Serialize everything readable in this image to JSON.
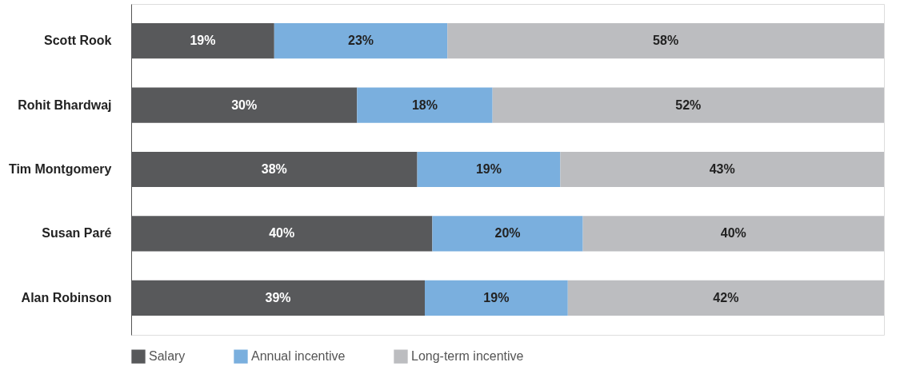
{
  "chart_data": {
    "type": "bar",
    "orientation": "horizontal",
    "stacked": true,
    "legend": "bottom",
    "categories": [
      "Scott Rook",
      "Rohit Bhardwaj",
      "Tim Montgomery",
      "Susan Paré",
      "Alan Robinson"
    ],
    "series": [
      {
        "name": "Salary",
        "color": "#58595b",
        "values": [
          19,
          30,
          38,
          40,
          39
        ],
        "value_labels": [
          "19%",
          "30%",
          "38%",
          "40%",
          "39%"
        ]
      },
      {
        "name": "Annual incentive",
        "color": "#7aafde",
        "values": [
          23,
          18,
          19,
          20,
          19
        ],
        "value_labels": [
          "23%",
          "18%",
          "19%",
          "20%",
          "19%"
        ]
      },
      {
        "name": "Long-term incentive",
        "color": "#bcbdc0",
        "values": [
          58,
          52,
          43,
          40,
          42
        ],
        "value_labels": [
          "58%",
          "52%",
          "43%",
          "40%",
          "42%"
        ]
      }
    ]
  }
}
